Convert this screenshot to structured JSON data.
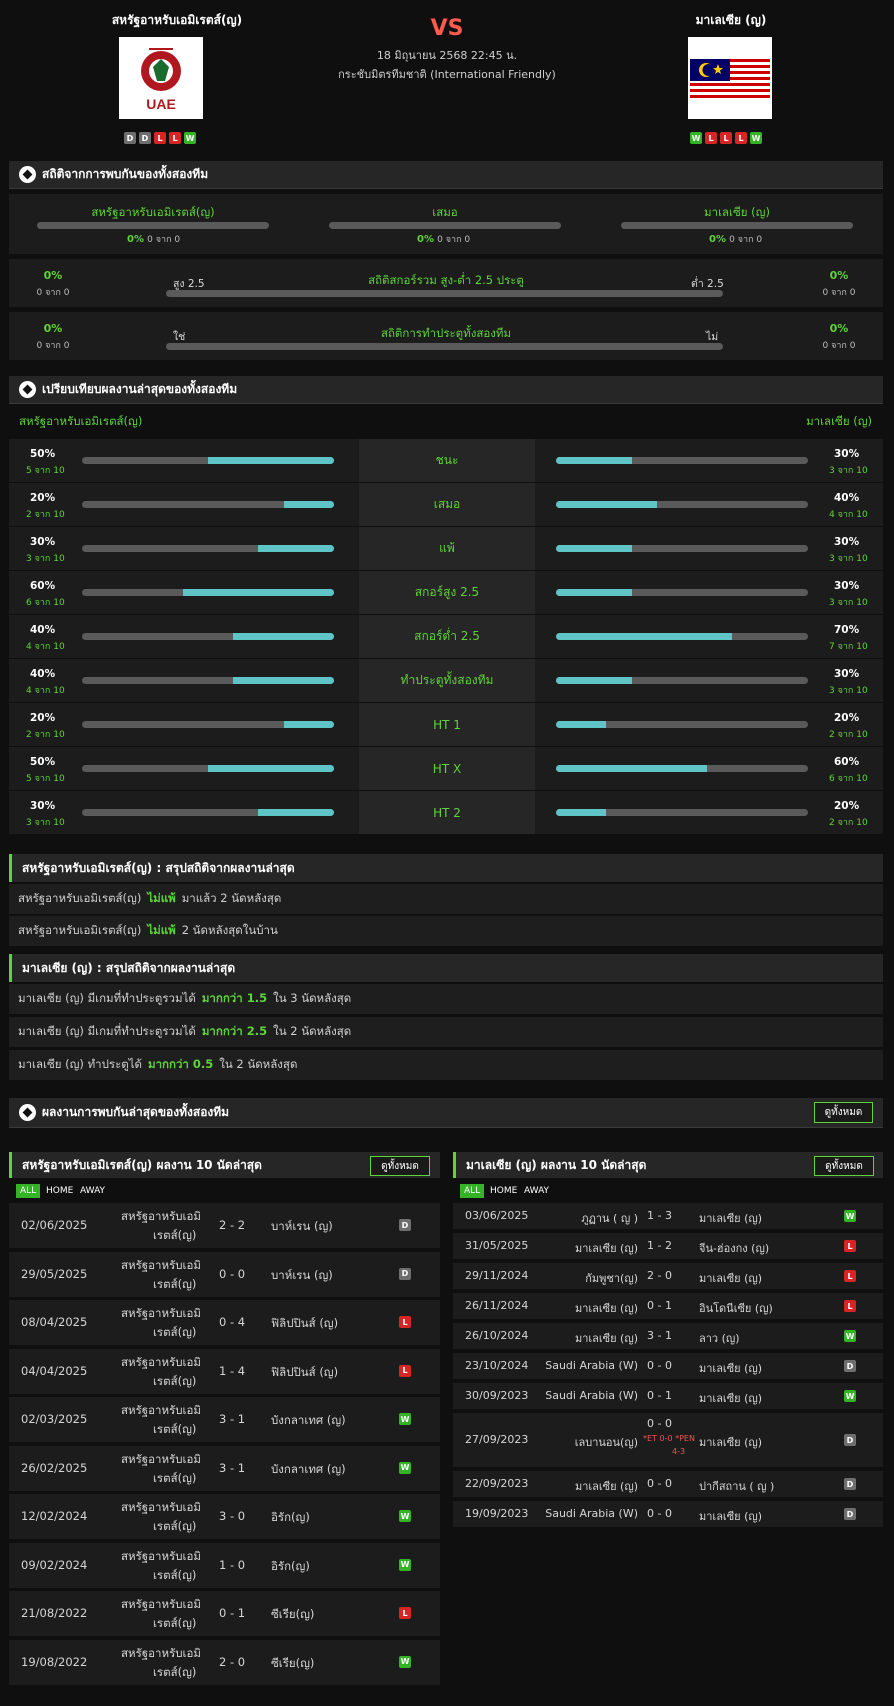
{
  "header": {
    "home_name": "สหรัฐอาหรับเอมิเรตส์(ญ)",
    "away_name": "มาเลเซีย (ญ)",
    "vs": "VS",
    "date": "18 มิถุนายน 2568 22:45 น.",
    "competition": "กระชับมิตรทีมชาติ (International Friendly)",
    "home_logo_text": "UAE",
    "home_form": [
      "D",
      "D",
      "L",
      "L",
      "W"
    ],
    "away_form": [
      "W",
      "L",
      "L",
      "L",
      "W"
    ]
  },
  "h2h_stats": {
    "title": "สถิติจากการพบกันของทั้งสองทีม",
    "home": {
      "label": "สหรัฐอาหรับเอมิเรตส์(ญ)",
      "pct": "0%",
      "count": "0 จาก 0",
      "fill": 0
    },
    "draw": {
      "label": "เสมอ",
      "pct": "0%",
      "count": "0 จาก 0",
      "fill": 0
    },
    "away": {
      "label": "มาเลเซีย (ญ)",
      "pct": "0%",
      "count": "0 จาก 0",
      "fill": 0
    },
    "over_under": {
      "title": "สถิติสกอร์รวม สูง-ต่ำ 2.5 ประตู",
      "left_label": "สูง 2.5",
      "right_label": "ต่ำ 2.5",
      "left_pct": "0%",
      "left_count": "0 จาก 0",
      "right_pct": "0%",
      "right_count": "0 จาก 0"
    },
    "btts": {
      "title": "สถิติการทำประตูทั้งสองทีม",
      "left_label": "ใช่",
      "right_label": "ไม่",
      "left_pct": "0%",
      "left_count": "0 จาก 0",
      "right_pct": "0%",
      "right_count": "0 จาก 0"
    }
  },
  "compare": {
    "title": "เปรียบเทียบผลงานล่าสุดของทั้งสองทีม",
    "home_label": "สหรัฐอาหรับเอมิเรตส์(ญ)",
    "away_label": "มาเลเซีย (ญ)",
    "rows": [
      {
        "label": "ชนะ",
        "home_pct": "50%",
        "home_count": "5 จาก 10",
        "home_val": 0.5,
        "away_pct": "30%",
        "away_count": "3 จาก 10",
        "away_val": 0.3
      },
      {
        "label": "เสมอ",
        "home_pct": "20%",
        "home_count": "2 จาก 10",
        "home_val": 0.2,
        "away_pct": "40%",
        "away_count": "4 จาก 10",
        "away_val": 0.4
      },
      {
        "label": "แพ้",
        "home_pct": "30%",
        "home_count": "3 จาก 10",
        "home_val": 0.3,
        "away_pct": "30%",
        "away_count": "3 จาก 10",
        "away_val": 0.3
      },
      {
        "label": "สกอร์สูง 2.5",
        "home_pct": "60%",
        "home_count": "6 จาก 10",
        "home_val": 0.6,
        "away_pct": "30%",
        "away_count": "3 จาก 10",
        "away_val": 0.3
      },
      {
        "label": "สกอร์ต่ำ 2.5",
        "home_pct": "40%",
        "home_count": "4 จาก 10",
        "home_val": 0.4,
        "away_pct": "70%",
        "away_count": "7 จาก 10",
        "away_val": 0.7
      },
      {
        "label": "ทำประตูทั้งสองทีม",
        "home_pct": "40%",
        "home_count": "4 จาก 10",
        "home_val": 0.4,
        "away_pct": "30%",
        "away_count": "3 จาก 10",
        "away_val": 0.3
      },
      {
        "label": "HT 1",
        "home_pct": "20%",
        "home_count": "2 จาก 10",
        "home_val": 0.2,
        "away_pct": "20%",
        "away_count": "2 จาก 10",
        "away_val": 0.2
      },
      {
        "label": "HT X",
        "home_pct": "50%",
        "home_count": "5 จาก 10",
        "home_val": 0.5,
        "away_pct": "60%",
        "away_count": "6 จาก 10",
        "away_val": 0.6
      },
      {
        "label": "HT 2",
        "home_pct": "30%",
        "home_count": "3 จาก 10",
        "home_val": 0.3,
        "away_pct": "20%",
        "away_count": "2 จาก 10",
        "away_val": 0.2
      }
    ]
  },
  "home_summary": {
    "title": "สหรัฐอาหรับเอมิเรตส์(ญ) : สรุปสถิติจากผลงานล่าสุด",
    "rows": [
      {
        "a": "สหรัฐอาหรับเอมิเรตส์(ญ)",
        "b": "ไม่แพ้",
        "c": "มาแล้ว 2 นัดหลังสุด"
      },
      {
        "a": "สหรัฐอาหรับเอมิเรตส์(ญ)",
        "b": "ไม่แพ้",
        "c": "2  นัดหลังสุดในบ้าน"
      }
    ]
  },
  "away_summary": {
    "title": "มาเลเซีย (ญ) : สรุปสถิติจากผลงานล่าสุด",
    "rows": [
      {
        "a": "มาเลเซีย (ญ) มีเกมที่ทำประตูรวมได้",
        "b": "มากกว่า  1.5",
        "c": "ใน 3 นัดหลังสุด"
      },
      {
        "a": "มาเลเซีย (ญ) มีเกมที่ทำประตูรวมได้",
        "b": "มากกว่า  2.5",
        "c": "ใน 2 นัดหลังสุด"
      },
      {
        "a": "มาเลเซีย (ญ) ทำประตูได้",
        "b": "มากกว่า  0.5",
        "c": "ใน 2 นัดหลังสุด"
      }
    ]
  },
  "h2h_results": {
    "title": "ผลงานการพบกันล่าสุดของทั้งสองทีม",
    "view_all": "ดูทั้งหมด"
  },
  "home_last10": {
    "title": "สหรัฐอาหรับเอมิเรตส์(ญ) ผลงาน 10 นัดล่าสุด",
    "view_all": "ดูทั้งหมด",
    "tabs": [
      "ALL",
      "HOME",
      "AWAY"
    ],
    "matches": [
      {
        "date": "02/06/2025",
        "home1": "สหรัฐอาหรับเอมิ",
        "home2": "เรตส์(ญ)",
        "score": "2 - 2",
        "opp": "บาห์เรน (ญ)",
        "res": "D"
      },
      {
        "date": "29/05/2025",
        "home1": "สหรัฐอาหรับเอมิ",
        "home2": "เรตส์(ญ)",
        "score": "0 - 0",
        "opp": "บาห์เรน (ญ)",
        "res": "D"
      },
      {
        "date": "08/04/2025",
        "home1": "สหรัฐอาหรับเอมิ",
        "home2": "เรตส์(ญ)",
        "score": "0 - 4",
        "opp": "ฟิลิปปินส์ (ญ)",
        "res": "L"
      },
      {
        "date": "04/04/2025",
        "home1": "สหรัฐอาหรับเอมิ",
        "home2": "เรตส์(ญ)",
        "score": "1 - 4",
        "opp": "ฟิลิปปินส์ (ญ)",
        "res": "L"
      },
      {
        "date": "02/03/2025",
        "home1": "สหรัฐอาหรับเอมิ",
        "home2": "เรตส์(ญ)",
        "score": "3 - 1",
        "opp": "บังกลาเทศ (ญ)",
        "res": "W"
      },
      {
        "date": "26/02/2025",
        "home1": "สหรัฐอาหรับเอมิ",
        "home2": "เรตส์(ญ)",
        "score": "3 - 1",
        "opp": "บังกลาเทศ (ญ)",
        "res": "W"
      },
      {
        "date": "12/02/2024",
        "home1": "สหรัฐอาหรับเอมิ",
        "home2": "เรตส์(ญ)",
        "score": "3 - 0",
        "opp": "อิรัก(ญ)",
        "res": "W"
      },
      {
        "date": "09/02/2024",
        "home1": "สหรัฐอาหรับเอมิ",
        "home2": "เรตส์(ญ)",
        "score": "1 - 0",
        "opp": "อิรัก(ญ)",
        "res": "W"
      },
      {
        "date": "21/08/2022",
        "home1": "สหรัฐอาหรับเอมิ",
        "home2": "เรตส์(ญ)",
        "score": "0 - 1",
        "opp": "ซีเรีย(ญ)",
        "res": "L"
      },
      {
        "date": "19/08/2022",
        "home1": "สหรัฐอาหรับเอมิ",
        "home2": "เรตส์(ญ)",
        "score": "2 - 0",
        "opp": "ซีเรีย(ญ)",
        "res": "W"
      }
    ]
  },
  "away_last10": {
    "title": "มาเลเซีย (ญ) ผลงาน 10 นัดล่าสุด",
    "view_all": "ดูทั้งหมด",
    "tabs": [
      "ALL",
      "HOME",
      "AWAY"
    ],
    "matches": [
      {
        "date": "03/06/2025",
        "home": "ภูฏาน ( ญ )",
        "score": "1 - 3",
        "away": "มาเลเซีย (ญ)",
        "res": "W"
      },
      {
        "date": "31/05/2025",
        "home": "มาเลเซีย (ญ)",
        "score": "1 - 2",
        "away": "จีน-ฮ่องกง (ญ)",
        "res": "L"
      },
      {
        "date": "29/11/2024",
        "home": "กัมพูชา(ญ)",
        "score": "2 - 0",
        "away": "มาเลเซีย (ญ)",
        "res": "L"
      },
      {
        "date": "26/11/2024",
        "home": "มาเลเซีย (ญ)",
        "score": "0 - 1",
        "away": "อินโดนีเซีย (ญ)",
        "res": "L"
      },
      {
        "date": "26/10/2024",
        "home": "มาเลเซีย (ญ)",
        "score": "3 - 1",
        "away": "ลาว (ญ)",
        "res": "W"
      },
      {
        "date": "23/10/2024",
        "home": "Saudi Arabia (W)",
        "score": "0 - 0",
        "away": "มาเลเซีย (ญ)",
        "res": "D"
      },
      {
        "date": "30/09/2023",
        "home": "Saudi Arabia (W)",
        "score": "0 - 1",
        "away": "มาเลเซีย (ญ)",
        "res": "W"
      },
      {
        "date": "27/09/2023",
        "home": "เลบานอน(ญ)",
        "score": "0 - 0",
        "note1": "*ET 0-0 *PEN",
        "note2": "4-3",
        "away": "มาเลเซีย (ญ)",
        "res": "D"
      },
      {
        "date": "22/09/2023",
        "home": "มาเลเซีย (ญ)",
        "score": "0 - 0",
        "away": "ปากีสถาน ( ญ )",
        "res": "D"
      },
      {
        "date": "19/09/2023",
        "home": "Saudi Arabia (W)",
        "score": "0 - 0",
        "away": "มาเลเซีย (ญ)",
        "res": "D"
      }
    ]
  },
  "colors": {
    "win": "#35b327",
    "loss": "#d62525",
    "draw": "#6e6e6e",
    "accent": "#5fd33a",
    "bar_fill": "#5fc4c6",
    "vs": "#ff5a4e"
  }
}
